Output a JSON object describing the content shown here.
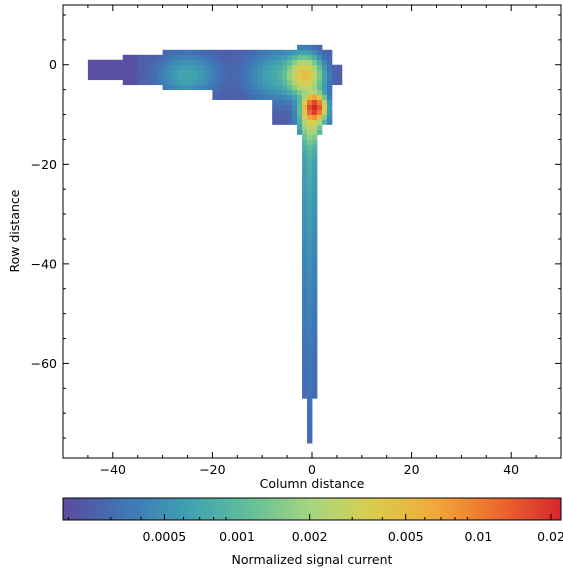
{
  "chart_data": {
    "type": "heatmap",
    "title": "",
    "xlabel": "Column distance",
    "ylabel": "Row distance",
    "xlim": [
      -50,
      50
    ],
    "ylim": [
      -79,
      12
    ],
    "x_ticks": [
      -40,
      -20,
      0,
      20,
      40
    ],
    "x_tick_labels": [
      "−40",
      "−20",
      "0",
      "20",
      "40"
    ],
    "y_ticks": [
      0,
      -20,
      -40,
      -60
    ],
    "y_tick_labels": [
      "0",
      "−20",
      "−40",
      "−60"
    ],
    "grid": false,
    "colorbar": {
      "label": "Normalized signal current",
      "scale": "log",
      "range": [
        0.00019,
        0.022
      ],
      "colormap": "spectral",
      "ticks": [
        0.0005,
        0.001,
        0.002,
        0.005,
        0.01,
        0.02
      ],
      "tick_labels": [
        "0.0005",
        "0.001",
        "0.002",
        "0.005",
        "0.01",
        "0.02"
      ]
    },
    "colormap_stops": [
      "#5c4b9e",
      "#3f76b8",
      "#3fa0b2",
      "#61bf98",
      "#a7d67e",
      "#dccd4c",
      "#f1a73a",
      "#ec6a2e",
      "#d7262d"
    ],
    "pixel_size": 1,
    "regions": [
      {
        "name": "horizontal-band-core",
        "x_range": [
          -44,
          6
        ],
        "y_range": [
          -6,
          3
        ],
        "base": 0.00028
      },
      {
        "name": "vertical-stem",
        "x_range": [
          -2,
          2
        ],
        "y_range": [
          -76,
          -8
        ],
        "base": 0.0006
      }
    ],
    "hot_spots": [
      {
        "x": 0.5,
        "y": -8.5,
        "value": 0.022
      },
      {
        "x": -1.5,
        "y": -2,
        "value": 0.005
      },
      {
        "x": -25,
        "y": -2,
        "value": 0.0012
      },
      {
        "x": -5,
        "y": -2,
        "value": 0.002
      }
    ]
  }
}
